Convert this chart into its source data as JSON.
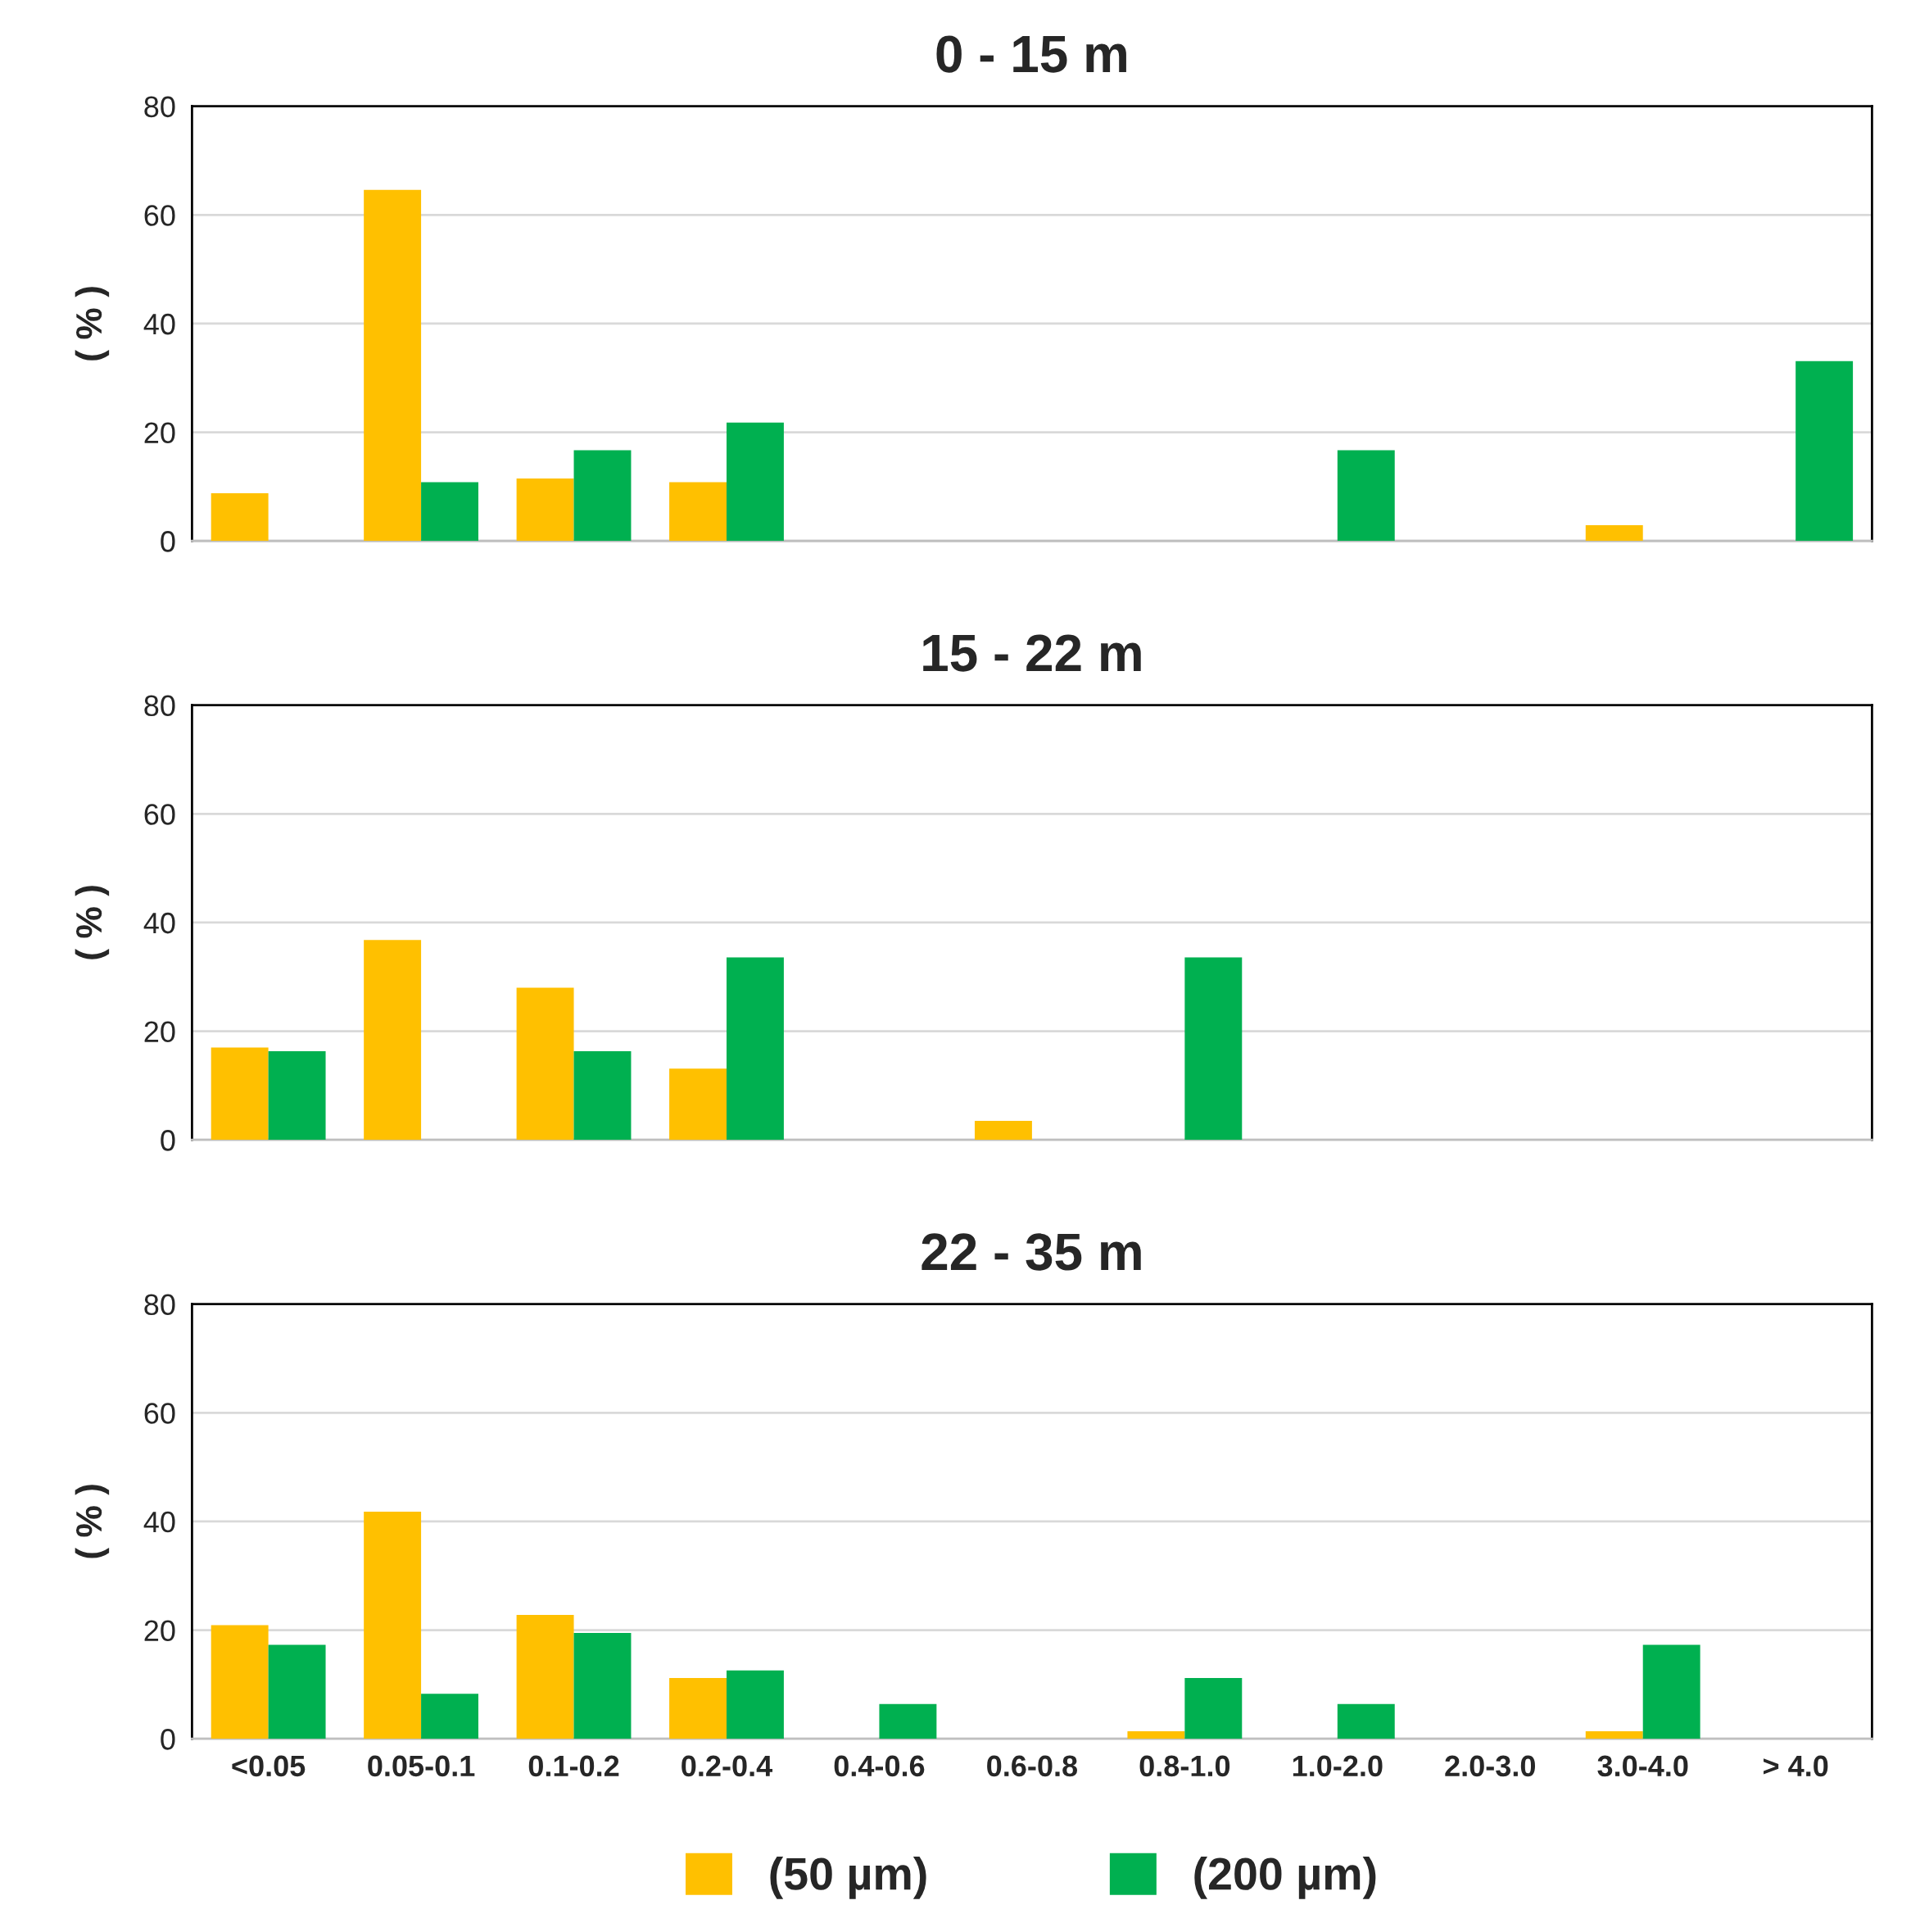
{
  "chart_data": [
    {
      "type": "bar",
      "title": "0 - 15 m",
      "ylabel": "( % )",
      "categories": [
        null,
        null,
        null,
        null,
        null,
        null,
        null,
        null,
        null,
        null,
        null
      ],
      "ylim": [
        0,
        80
      ],
      "yticks": [
        0,
        20,
        40,
        60,
        80
      ],
      "grid": "y",
      "tick_labels": "y",
      "series": [
        {
          "color": "#ffc000",
          "values": [
            8.8,
            64.6,
            11.5,
            10.8,
            null,
            null,
            null,
            null,
            null,
            2.9,
            null
          ]
        },
        {
          "color": "#00b050",
          "values": [
            null,
            10.8,
            16.7,
            21.8,
            null,
            null,
            null,
            16.7,
            null,
            null,
            33.1
          ]
        }
      ]
    },
    {
      "type": "bar",
      "title": "15 - 22 m",
      "ylabel": "( % )",
      "categories": [
        null,
        null,
        null,
        null,
        null,
        null,
        null,
        null,
        null,
        null,
        null
      ],
      "ylim": [
        0,
        80
      ],
      "yticks": [
        0,
        20,
        40,
        60,
        80
      ],
      "grid": "y",
      "tick_labels": "y",
      "series": [
        {
          "color": "#ffc000",
          "values": [
            17.0,
            36.8,
            28.0,
            13.1,
            null,
            3.5,
            null,
            null,
            null,
            null,
            null
          ]
        },
        {
          "color": "#00b050",
          "values": [
            16.3,
            null,
            16.3,
            33.6,
            null,
            null,
            33.6,
            null,
            null,
            null,
            null
          ]
        }
      ]
    },
    {
      "type": "bar",
      "title": "22 - 35 m",
      "ylabel": "( % )",
      "categories": [
        "<0.05",
        "0.05-0.1",
        "0.1-0.2",
        "0.2-0.4",
        "0.4-0.6",
        "0.6-0.8",
        "0.8-1.0",
        "1.0-2.0",
        "2.0-3.0",
        "3.0-4.0",
        "> 4.0"
      ],
      "ylim": [
        0,
        80
      ],
      "yticks": [
        0,
        20,
        40,
        60,
        80
      ],
      "grid": "y",
      "legend": "bottom",
      "series": [
        {
          "name": "(50 µm)",
          "color": "#ffc000",
          "values": [
            20.9,
            41.8,
            22.8,
            11.2,
            null,
            null,
            1.4,
            null,
            null,
            1.4,
            null
          ]
        },
        {
          "name": "(200 µm)",
          "color": "#00b050",
          "values": [
            17.3,
            8.3,
            19.5,
            12.6,
            6.4,
            null,
            11.2,
            6.4,
            null,
            17.3,
            null
          ]
        }
      ]
    }
  ]
}
